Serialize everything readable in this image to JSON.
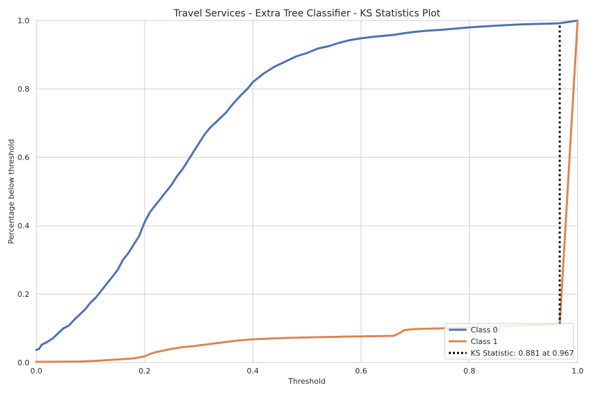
{
  "chart_data": {
    "type": "line",
    "title": "Travel Services - Extra Tree Classifier - KS Statistics Plot",
    "xlabel": "Threshold",
    "ylabel": "Percentage below threshold",
    "xlim": [
      0,
      1
    ],
    "ylim": [
      0,
      1
    ],
    "x_ticks": [
      "0.0",
      "0.2",
      "0.4",
      "0.6",
      "0.8",
      "1.0"
    ],
    "y_ticks": [
      "0.0",
      "0.2",
      "0.4",
      "0.6",
      "0.8",
      "1.0"
    ],
    "grid": true,
    "legend_position": "bottom-right",
    "colors": {
      "class0": "#4c72b0",
      "class1": "#dd8452",
      "ks": "#000000",
      "grid": "#cccccc",
      "frame": "#cccccc"
    },
    "series": [
      {
        "name": "Class 0",
        "x": [
          0.0,
          0.005,
          0.01,
          0.02,
          0.03,
          0.04,
          0.05,
          0.06,
          0.07,
          0.08,
          0.09,
          0.1,
          0.11,
          0.12,
          0.13,
          0.14,
          0.15,
          0.16,
          0.17,
          0.18,
          0.19,
          0.2,
          0.21,
          0.22,
          0.23,
          0.24,
          0.25,
          0.26,
          0.27,
          0.28,
          0.29,
          0.3,
          0.31,
          0.32,
          0.33,
          0.34,
          0.35,
          0.36,
          0.37,
          0.38,
          0.39,
          0.4,
          0.42,
          0.44,
          0.46,
          0.48,
          0.5,
          0.52,
          0.54,
          0.56,
          0.58,
          0.6,
          0.62,
          0.64,
          0.66,
          0.68,
          0.7,
          0.72,
          0.75,
          0.8,
          0.85,
          0.9,
          0.95,
          0.967,
          1.0
        ],
        "y": [
          0.037,
          0.04,
          0.052,
          0.06,
          0.07,
          0.085,
          0.1,
          0.108,
          0.125,
          0.14,
          0.155,
          0.175,
          0.19,
          0.21,
          0.23,
          0.25,
          0.27,
          0.3,
          0.32,
          0.345,
          0.37,
          0.41,
          0.44,
          0.46,
          0.48,
          0.5,
          0.52,
          0.545,
          0.565,
          0.59,
          0.615,
          0.64,
          0.665,
          0.685,
          0.7,
          0.715,
          0.73,
          0.75,
          0.768,
          0.785,
          0.8,
          0.82,
          0.845,
          0.865,
          0.88,
          0.895,
          0.905,
          0.918,
          0.925,
          0.935,
          0.943,
          0.948,
          0.952,
          0.955,
          0.958,
          0.963,
          0.967,
          0.97,
          0.973,
          0.98,
          0.985,
          0.989,
          0.991,
          0.992,
          1.0
        ]
      },
      {
        "name": "Class 1",
        "x": [
          0.0,
          0.08,
          0.11,
          0.16,
          0.18,
          0.2,
          0.21,
          0.22,
          0.25,
          0.27,
          0.29,
          0.31,
          0.34,
          0.37,
          0.4,
          0.43,
          0.46,
          0.49,
          0.52,
          0.55,
          0.58,
          0.62,
          0.66,
          0.67,
          0.68,
          0.7,
          0.75,
          0.8,
          0.85,
          0.9,
          0.967,
          1.0
        ],
        "y": [
          0.002,
          0.003,
          0.005,
          0.01,
          0.012,
          0.018,
          0.025,
          0.03,
          0.04,
          0.045,
          0.048,
          0.052,
          0.058,
          0.064,
          0.068,
          0.07,
          0.072,
          0.073,
          0.074,
          0.075,
          0.076,
          0.077,
          0.078,
          0.085,
          0.095,
          0.098,
          0.1,
          0.103,
          0.105,
          0.108,
          0.111,
          1.0
        ]
      }
    ],
    "ks_line": {
      "label": "KS Statistic: 0.881 at 0.967",
      "x": 0.967,
      "y_from": 0.111,
      "y_to": 0.992
    }
  }
}
